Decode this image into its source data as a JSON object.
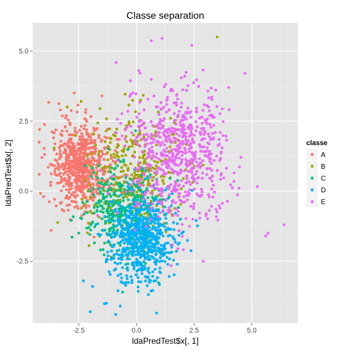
{
  "chart_data": {
    "type": "scatter",
    "title": "Classe separation",
    "xlabel": "ldaPredTest$x[, 1]",
    "ylabel": "ldaPredTest$x[, 2]",
    "xlim": [
      -4.5,
      7.0
    ],
    "ylim": [
      -4.7,
      6.0
    ],
    "x_ticks": [
      -2.5,
      0.0,
      2.5,
      5.0
    ],
    "x_tick_labels": [
      "-2.5",
      "0.0",
      "2.5",
      "5.0"
    ],
    "y_ticks": [
      -2.5,
      0.0,
      2.5,
      5.0
    ],
    "y_tick_labels": [
      "-2.5",
      "0.0",
      "2.5",
      "5.0"
    ],
    "grid": true,
    "panel_background": "#e5e5e5",
    "legend": {
      "title": "classe",
      "placement": "right"
    },
    "series": [
      {
        "name": "A",
        "color": "#f8766d",
        "count": 700,
        "center": [
          -2.4,
          0.9
        ],
        "spread": [
          0.6,
          0.7
        ],
        "points": [
          [
            -3.7,
            -1.4
          ],
          [
            -2.7,
            3.5
          ],
          [
            -3.3,
            2.9
          ],
          [
            -1.5,
            3.4
          ],
          [
            -4.2,
            2.2
          ],
          [
            -4.1,
            1.2
          ]
        ]
      },
      {
        "name": "B",
        "color": "#a3a500",
        "count": 380,
        "center": [
          -0.1,
          0.6
        ],
        "spread": [
          1.0,
          1.1
        ],
        "points": [
          [
            3.5,
            5.5
          ],
          [
            -2.4,
            3.2
          ],
          [
            -3.0,
            3.0
          ],
          [
            -0.4,
            -2.4
          ]
        ]
      },
      {
        "name": "C",
        "color": "#00bf7d",
        "count": 380,
        "center": [
          -0.6,
          -0.6
        ],
        "spread": [
          0.8,
          0.8
        ],
        "points": [
          [
            -0.6,
            -3.6
          ],
          [
            0.8,
            -3.2
          ],
          [
            -1.9,
            -1.1
          ]
        ]
      },
      {
        "name": "D",
        "color": "#00b0f6",
        "count": 700,
        "center": [
          0.2,
          -1.6
        ],
        "spread": [
          0.7,
          0.8
        ],
        "points": [
          [
            -2.0,
            -4.3
          ],
          [
            -1.3,
            -4.0
          ],
          [
            -0.7,
            -4.1
          ],
          [
            -0.9,
            -4.4
          ],
          [
            -2.3,
            -3.2
          ],
          [
            -1.9,
            -3.4
          ]
        ]
      },
      {
        "name": "E",
        "color": "#e76bf3",
        "count": 700,
        "center": [
          1.8,
          1.4
        ],
        "spread": [
          1.1,
          1.2
        ],
        "points": [
          [
            6.4,
            -1.2
          ],
          [
            5.7,
            -1.5
          ],
          [
            5.6,
            -1.6
          ],
          [
            2.4,
            5.2
          ],
          [
            0.1,
            4.3
          ],
          [
            2.9,
            -2.5
          ],
          [
            4.0,
            3.7
          ],
          [
            4.7,
            4.2
          ]
        ]
      }
    ]
  }
}
